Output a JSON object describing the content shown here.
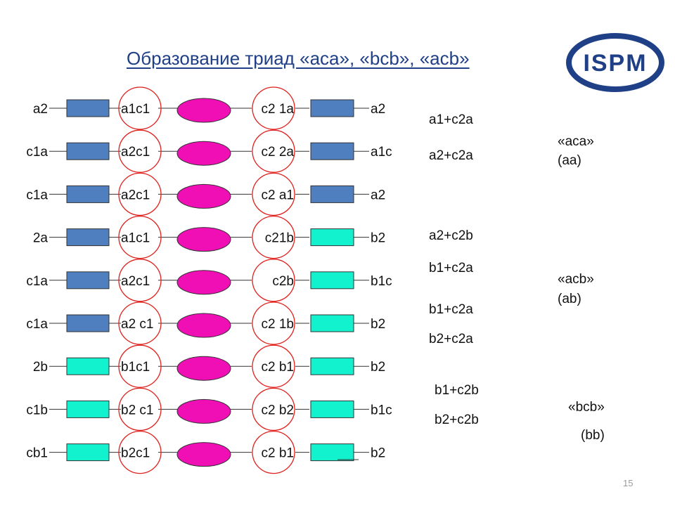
{
  "title": "Образование триад  «аса», «bcb», «acb»",
  "logo_text": "ISPM",
  "colors": {
    "title": "#1f3f86",
    "blue_box": "#4f7fbf",
    "cyan_box": "#13f2cf",
    "ellipse": "#ef0fb5",
    "circle": "#e0201c",
    "logo": "#1f3f86"
  },
  "rows": [
    {
      "left": "a2",
      "mid_left": "a1c1",
      "mid_right": "c2 1a",
      "right": "a2",
      "left_box": "blue",
      "right_box": "blue"
    },
    {
      "left": "c1a",
      "mid_left": "a2c1",
      "mid_right": "c2 2a",
      "right": "a1c",
      "left_box": "blue",
      "right_box": "blue"
    },
    {
      "left": "c1a",
      "mid_left": "a2c1",
      "mid_right": "c2 a1",
      "right": "a2",
      "left_box": "blue",
      "right_box": "blue"
    },
    {
      "left": "2a",
      "mid_left": "a1c1",
      "mid_right": "c21b",
      "right": "b2",
      "left_box": "blue",
      "right_box": "cyan"
    },
    {
      "left": "c1a",
      "mid_left": "a2c1",
      "mid_right": "c2b",
      "right": "b1c",
      "left_box": "blue",
      "right_box": "cyan"
    },
    {
      "left": "c1a",
      "mid_left": "a2 c1",
      "mid_right": "c2 1b",
      "right": "b2",
      "left_box": "blue",
      "right_box": "cyan"
    },
    {
      "left": "2b",
      "mid_left": "b1c1",
      "mid_right": "c2 b1",
      "right": "b2",
      "left_box": "cyan",
      "right_box": "cyan"
    },
    {
      "left": "c1b",
      "mid_left": "b2 c1",
      "mid_right": "c2 b2",
      "right": "b1c",
      "left_box": "cyan",
      "right_box": "cyan"
    },
    {
      "left": "cb1",
      "mid_left": "b2c1",
      "mid_right": "c2 b1",
      "right": "b2",
      "left_box": "cyan",
      "right_box": "cyan"
    }
  ],
  "combos": [
    "a1+c2a",
    "a2+c2a",
    "a2+c2b",
    "b1+c2a",
    "b1+c2a",
    "b2+c2a",
    "b1+c2b",
    "b2+c2b"
  ],
  "groups": {
    "aca": {
      "name": "«aca»",
      "code": "(aa)"
    },
    "acb": {
      "name": "«acb»",
      "code": "(ab)"
    },
    "bcb": {
      "name": "«bcb»",
      "code": "(bb)"
    }
  },
  "slide_number": "15"
}
